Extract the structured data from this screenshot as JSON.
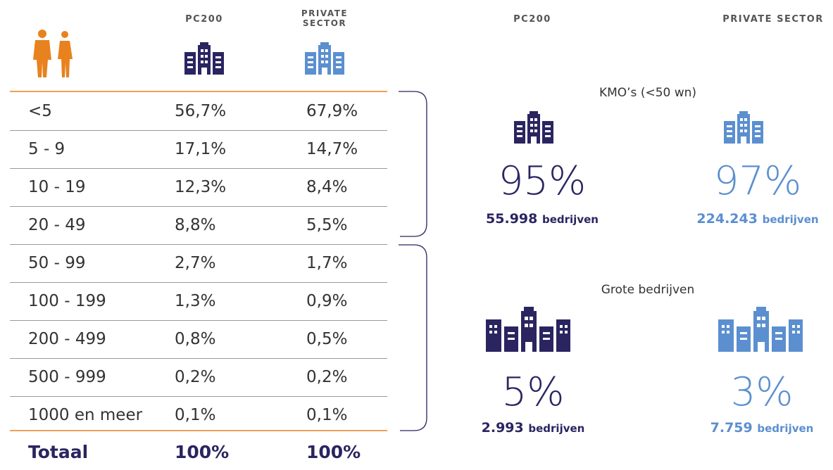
{
  "header": {
    "col_pc200": "PC200",
    "col_private": "PRIVATE SECTOR"
  },
  "table": {
    "rows": [
      [
        "<5",
        "56,7%",
        "67,9%"
      ],
      [
        "5 - 9",
        "17,1%",
        "14,7%"
      ],
      [
        "10 - 19",
        "12,3%",
        "8,4%"
      ],
      [
        "20 - 49",
        "8,8%",
        "5,5%"
      ],
      [
        "50 - 99",
        "2,7%",
        "1,7%"
      ],
      [
        "100 - 199",
        "1,3%",
        "0,9%"
      ],
      [
        "200 - 499",
        "0,8%",
        "0,5%"
      ],
      [
        "500 - 999",
        "0,2%",
        "0,2%"
      ],
      [
        "1000 en meer",
        "0,1%",
        "0,1%"
      ]
    ],
    "total": [
      "Totaal",
      "100%",
      "100%"
    ]
  },
  "summary": {
    "headers": [
      "PC200",
      "PRIVATE SECTOR"
    ],
    "groups": [
      {
        "label": "KMO’s (<50 wn)",
        "items": [
          {
            "percent": "95%",
            "count": "55.998",
            "unit": "bedrijven"
          },
          {
            "percent": "97%",
            "count": "224.243",
            "unit": "bedrijven"
          }
        ]
      },
      {
        "label": "Grote bedrijven",
        "items": [
          {
            "percent": "5%",
            "count": "2.993",
            "unit": "bedrijven"
          },
          {
            "percent": "3%",
            "count": "7.759",
            "unit": "bedrijven"
          }
        ]
      }
    ]
  }
}
